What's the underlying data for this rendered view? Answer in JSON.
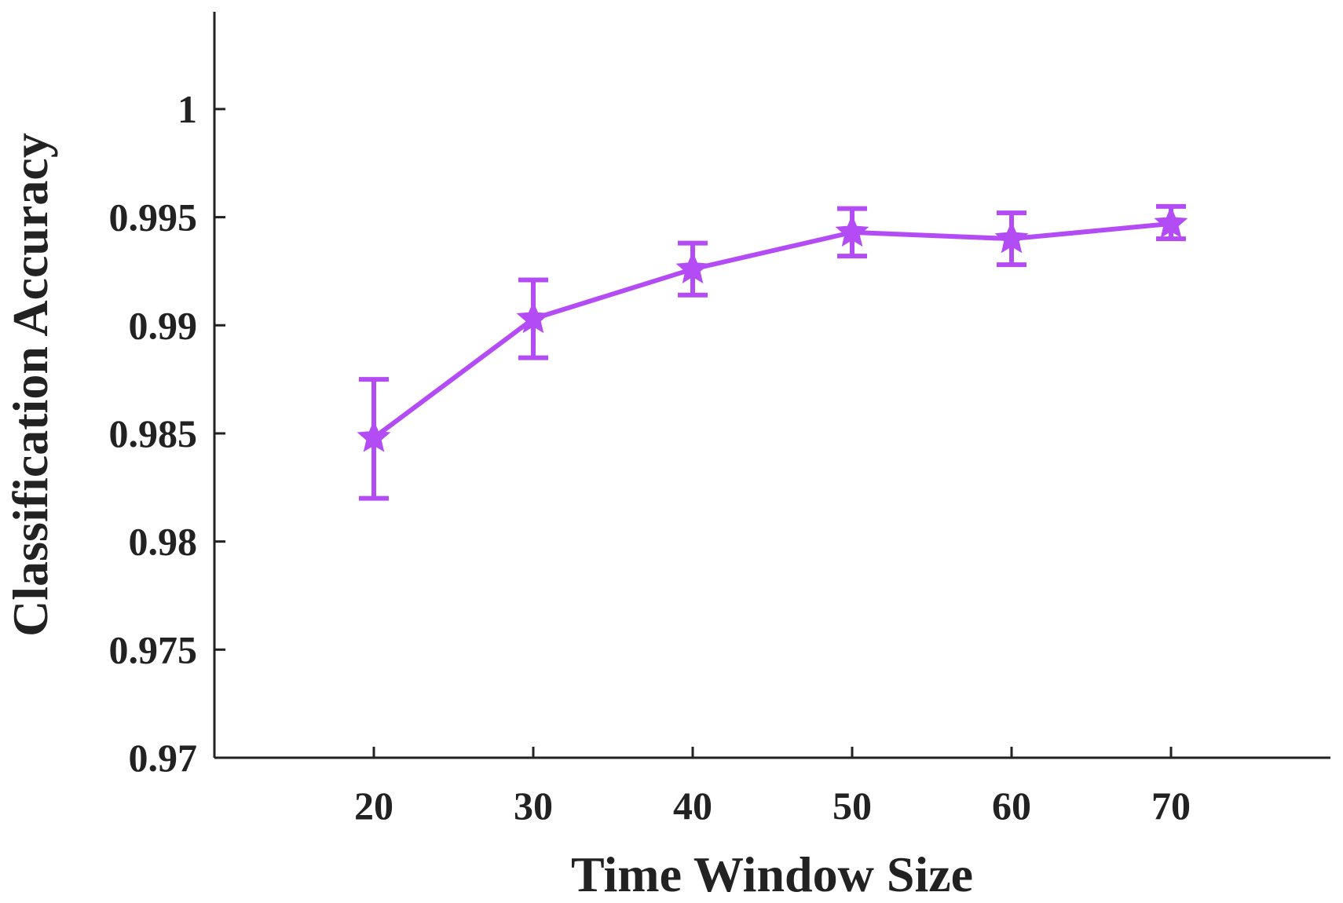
{
  "chart_data": {
    "type": "line",
    "title": "",
    "xlabel": "Time Window Size",
    "ylabel": "Classification Accuracy",
    "x": [
      20,
      30,
      40,
      50,
      60,
      70
    ],
    "xlim": [
      10,
      80
    ],
    "ylim": [
      0.97,
      1.0045
    ],
    "xticks": [
      20,
      30,
      40,
      50,
      60,
      70
    ],
    "xtick_labels": [
      "20",
      "30",
      "40",
      "50",
      "60",
      "70"
    ],
    "yticks": [
      0.97,
      0.975,
      0.98,
      0.985,
      0.99,
      0.995,
      1.0
    ],
    "ytick_labels": [
      "0.97",
      "0.975",
      "0.98",
      "0.985",
      "0.99",
      "0.995",
      "1"
    ],
    "grid": false,
    "series": [
      {
        "name": "Classification Accuracy",
        "marker": "star",
        "color": "#b34cf5",
        "values": [
          0.9848,
          0.9903,
          0.9926,
          0.9943,
          0.994,
          0.9947
        ],
        "error_low": [
          0.982,
          0.9885,
          0.9914,
          0.9932,
          0.9928,
          0.994
        ],
        "error_high": [
          0.9875,
          0.9921,
          0.9938,
          0.9954,
          0.9952,
          0.9955
        ]
      }
    ]
  }
}
